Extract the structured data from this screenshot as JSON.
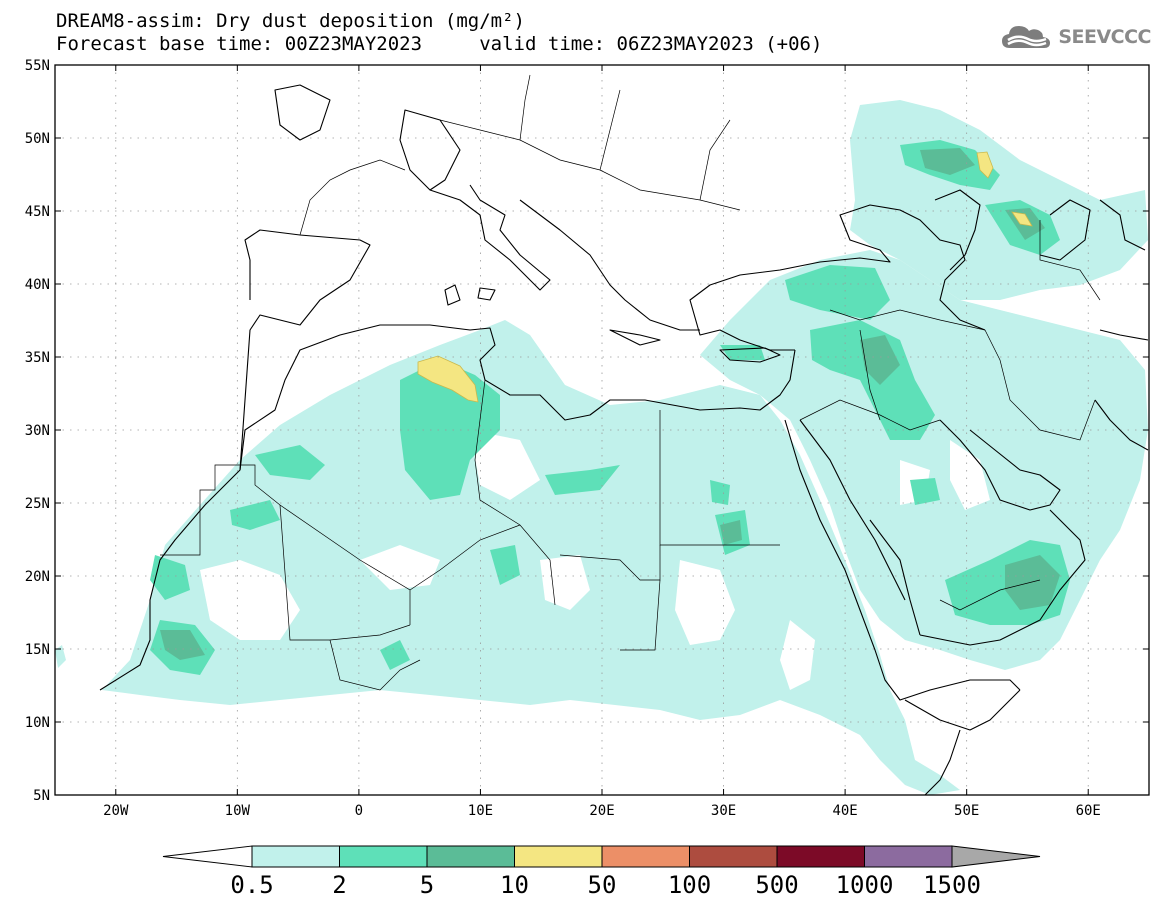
{
  "title_line1": "DREAM8-assim: Dry dust deposition (mg/m²)",
  "title_line2": "Forecast base time: 00Z23MAY2023     valid time: 06Z23MAY2023 (+06)",
  "logo_text": "SEEVCCC",
  "map_extent": {
    "lon_min": -25,
    "lon_max": 65,
    "lat_min": 5,
    "lat_max": 55
  },
  "lat_ticks": [
    {
      "lat": 55,
      "label": "55N"
    },
    {
      "lat": 50,
      "label": "50N"
    },
    {
      "lat": 45,
      "label": "45N"
    },
    {
      "lat": 40,
      "label": "40N"
    },
    {
      "lat": 35,
      "label": "35N"
    },
    {
      "lat": 30,
      "label": "30N"
    },
    {
      "lat": 25,
      "label": "25N"
    },
    {
      "lat": 20,
      "label": "20N"
    },
    {
      "lat": 15,
      "label": "15N"
    },
    {
      "lat": 10,
      "label": "10N"
    },
    {
      "lat": 5,
      "label": "5N"
    }
  ],
  "lon_ticks": [
    {
      "lon": -20,
      "label": "20W"
    },
    {
      "lon": -10,
      "label": "10W"
    },
    {
      "lon": 0,
      "label": "0"
    },
    {
      "lon": 10,
      "label": "10E"
    },
    {
      "lon": 20,
      "label": "20E"
    },
    {
      "lon": 30,
      "label": "30E"
    },
    {
      "lon": 40,
      "label": "40E"
    },
    {
      "lon": 50,
      "label": "50E"
    },
    {
      "lon": 60,
      "label": "60E"
    }
  ],
  "grid": true,
  "colorbar": {
    "levels": [
      "0.5",
      "2",
      "5",
      "10",
      "50",
      "100",
      "500",
      "1000",
      "1500"
    ],
    "colors": [
      "#c1f1eb",
      "#5ee0b8",
      "#5bbc97",
      "#f4e682",
      "#ec8f67",
      "#ad4c3f",
      "#7c0a27",
      "#8c6b9f"
    ],
    "over_color": "#a8a8a8",
    "under_color": "#ffffff"
  },
  "fill_colors": {
    "light": "#c1f1eb",
    "medium": "#5ee0b8",
    "dark": "#5bbc97",
    "yellow": "#f4e682"
  }
}
